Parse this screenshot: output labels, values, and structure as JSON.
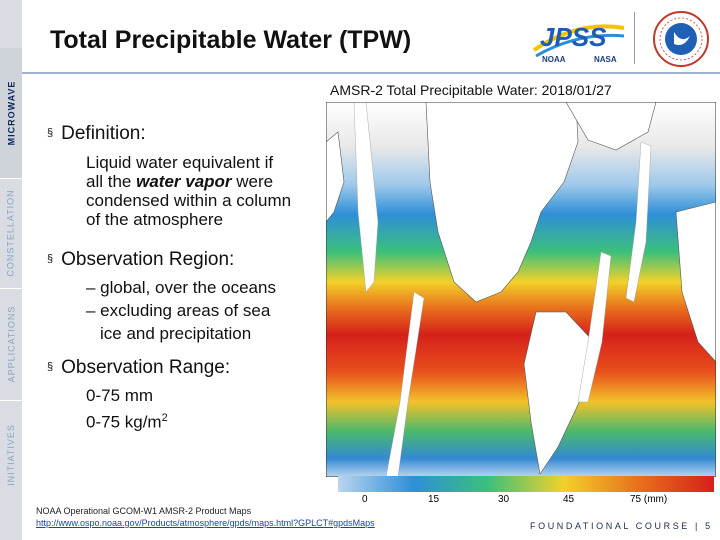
{
  "sidebar": {
    "sections": [
      {
        "label": "MICROWAVE",
        "active": true
      },
      {
        "label": "CONSTELLATION",
        "active": false
      },
      {
        "label": "APPLICATIONS",
        "active": false
      },
      {
        "label": "INITIATIVES",
        "active": false
      }
    ]
  },
  "header": {
    "title": "Total Precipitable Water (TPW)",
    "logo_jpss": {
      "mark": "JPSS",
      "left": "NOAA",
      "right": "NASA"
    }
  },
  "content": {
    "definition": {
      "label": "Definition:",
      "lines": [
        "Liquid water equivalent if",
        "all the",
        "water vapor",
        "were",
        "condensed within a column",
        "of the atmosphere"
      ]
    },
    "region": {
      "label": "Observation Region:",
      "lines": [
        "– global, over the oceans",
        "– excluding areas of sea",
        "ice and precipitation"
      ]
    },
    "range": {
      "label": "Observation Range:",
      "lines": [
        "0-75 mm",
        "0-75 kg/m",
        "2"
      ]
    }
  },
  "map": {
    "title": "AMSR-2 Total Precipitable Water: 2018/01/27",
    "scale_ticks": [
      "0",
      "15",
      "30",
      "45",
      "75  (mm)"
    ]
  },
  "footer": {
    "source": "NOAA Operational GCOM-W1 AMSR-2 Product Maps",
    "url": "http://www.ospo.noaa.gov/Products/atmosphere/gpds/maps.html?GPLCT#gpdsMaps",
    "course": "FOUNDATIONAL COURSE",
    "page": "5"
  },
  "colors": {
    "accent": "#0b2a5c",
    "sidebar": "#d9dde3",
    "link": "#1a46a8"
  }
}
